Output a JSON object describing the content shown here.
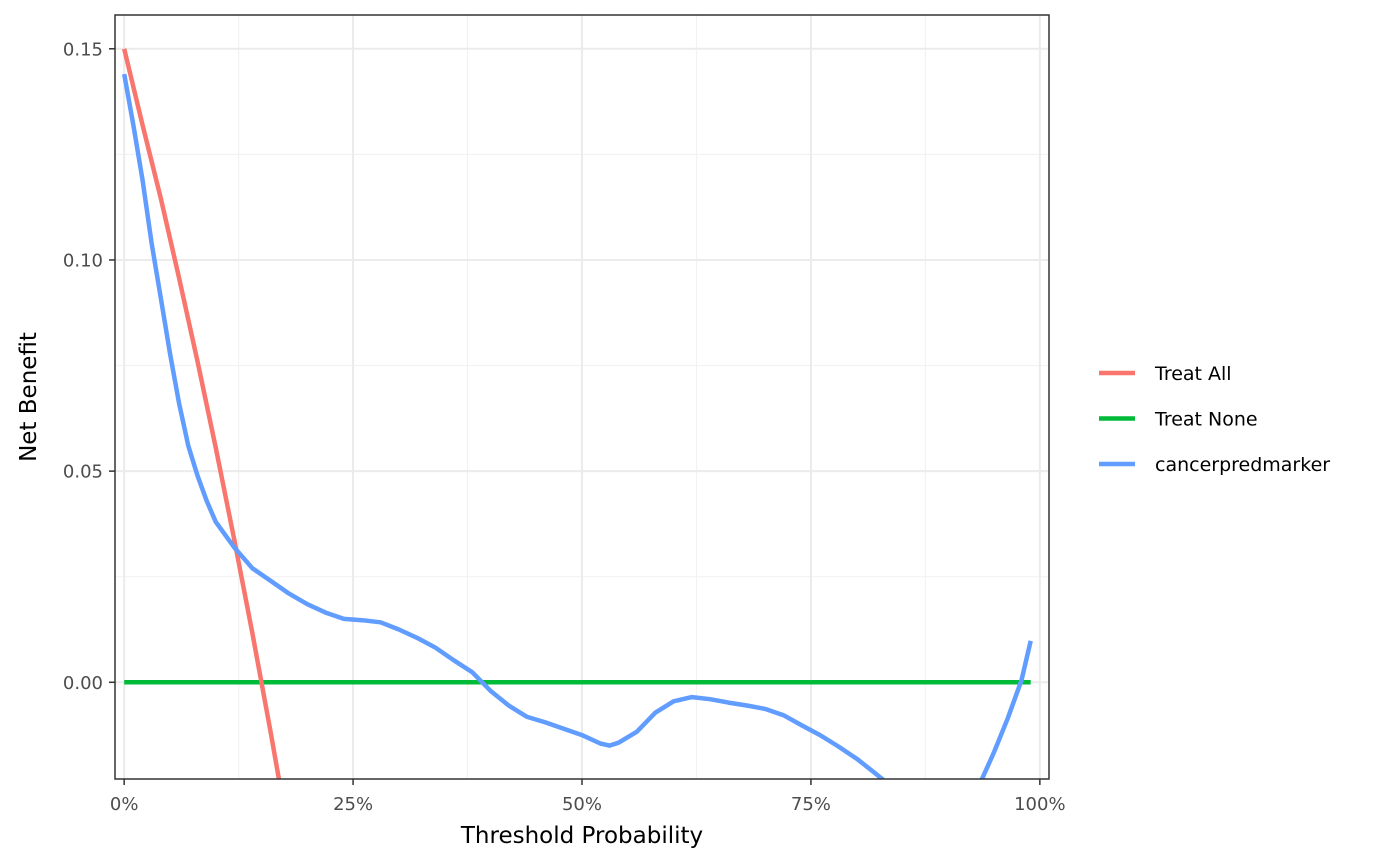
{
  "chart_data": {
    "type": "line",
    "title": "",
    "xlabel": "Threshold Probability",
    "ylabel": "Net Benefit",
    "xlim": [
      -0.01,
      1.01
    ],
    "ylim": [
      -0.0229,
      0.158
    ],
    "x_ticks": [
      0,
      0.25,
      0.5,
      0.75,
      1.0
    ],
    "x_tick_labels": [
      "0%",
      "25%",
      "50%",
      "75%",
      "100%"
    ],
    "y_ticks": [
      0,
      0.05,
      0.1,
      0.15
    ],
    "y_tick_labels": [
      "0.00",
      "0.05",
      "0.10",
      "0.15"
    ],
    "grid": true,
    "legend_position": "right",
    "series": [
      {
        "name": "Treat All",
        "color": "#F8766D",
        "points": [
          [
            0,
            0.15
          ],
          [
            0.02,
            0.132
          ],
          [
            0.04,
            0.1146
          ],
          [
            0.06,
            0.0957
          ],
          [
            0.08,
            0.0761
          ],
          [
            0.1,
            0.0556
          ],
          [
            0.12,
            0.0341
          ],
          [
            0.14,
            0.0116
          ],
          [
            0.16,
            -0.0119
          ],
          [
            0.17,
            -0.0241
          ]
        ]
      },
      {
        "name": "Treat None",
        "color": "#00BA38",
        "points": [
          [
            0,
            0
          ],
          [
            0.99,
            0
          ]
        ]
      },
      {
        "name": "cancerpredmarker",
        "color": "#619CFF",
        "points": [
          [
            0,
            0.144
          ],
          [
            0.01,
            0.132
          ],
          [
            0.02,
            0.119
          ],
          [
            0.03,
            0.104
          ],
          [
            0.04,
            0.091
          ],
          [
            0.05,
            0.078
          ],
          [
            0.06,
            0.066
          ],
          [
            0.07,
            0.056
          ],
          [
            0.08,
            0.049
          ],
          [
            0.09,
            0.043
          ],
          [
            0.1,
            0.038
          ],
          [
            0.12,
            0.032
          ],
          [
            0.14,
            0.027
          ],
          [
            0.16,
            0.024
          ],
          [
            0.18,
            0.021
          ],
          [
            0.2,
            0.0185
          ],
          [
            0.22,
            0.0165
          ],
          [
            0.24,
            0.015
          ],
          [
            0.26,
            0.0147
          ],
          [
            0.28,
            0.0142
          ],
          [
            0.3,
            0.0125
          ],
          [
            0.32,
            0.0105
          ],
          [
            0.34,
            0.0082
          ],
          [
            0.36,
            0.0052
          ],
          [
            0.38,
            0.0024
          ],
          [
            0.4,
            -0.002
          ],
          [
            0.42,
            -0.0055
          ],
          [
            0.44,
            -0.0082
          ],
          [
            0.46,
            -0.0095
          ],
          [
            0.48,
            -0.011
          ],
          [
            0.5,
            -0.0125
          ],
          [
            0.52,
            -0.0145
          ],
          [
            0.53,
            -0.015
          ],
          [
            0.54,
            -0.0143
          ],
          [
            0.56,
            -0.0117
          ],
          [
            0.58,
            -0.0072
          ],
          [
            0.6,
            -0.0045
          ],
          [
            0.62,
            -0.0035
          ],
          [
            0.64,
            -0.004
          ],
          [
            0.66,
            -0.0048
          ],
          [
            0.68,
            -0.0055
          ],
          [
            0.7,
            -0.0063
          ],
          [
            0.72,
            -0.0078
          ],
          [
            0.74,
            -0.0102
          ],
          [
            0.76,
            -0.0125
          ],
          [
            0.78,
            -0.0152
          ],
          [
            0.8,
            -0.0181
          ],
          [
            0.82,
            -0.0215
          ],
          [
            0.833,
            -0.0238
          ],
          [
            0.935,
            -0.0238
          ],
          [
            0.95,
            -0.0165
          ],
          [
            0.965,
            -0.0085
          ],
          [
            0.98,
            0.0005
          ],
          [
            0.99,
            0.0098
          ]
        ]
      }
    ]
  }
}
